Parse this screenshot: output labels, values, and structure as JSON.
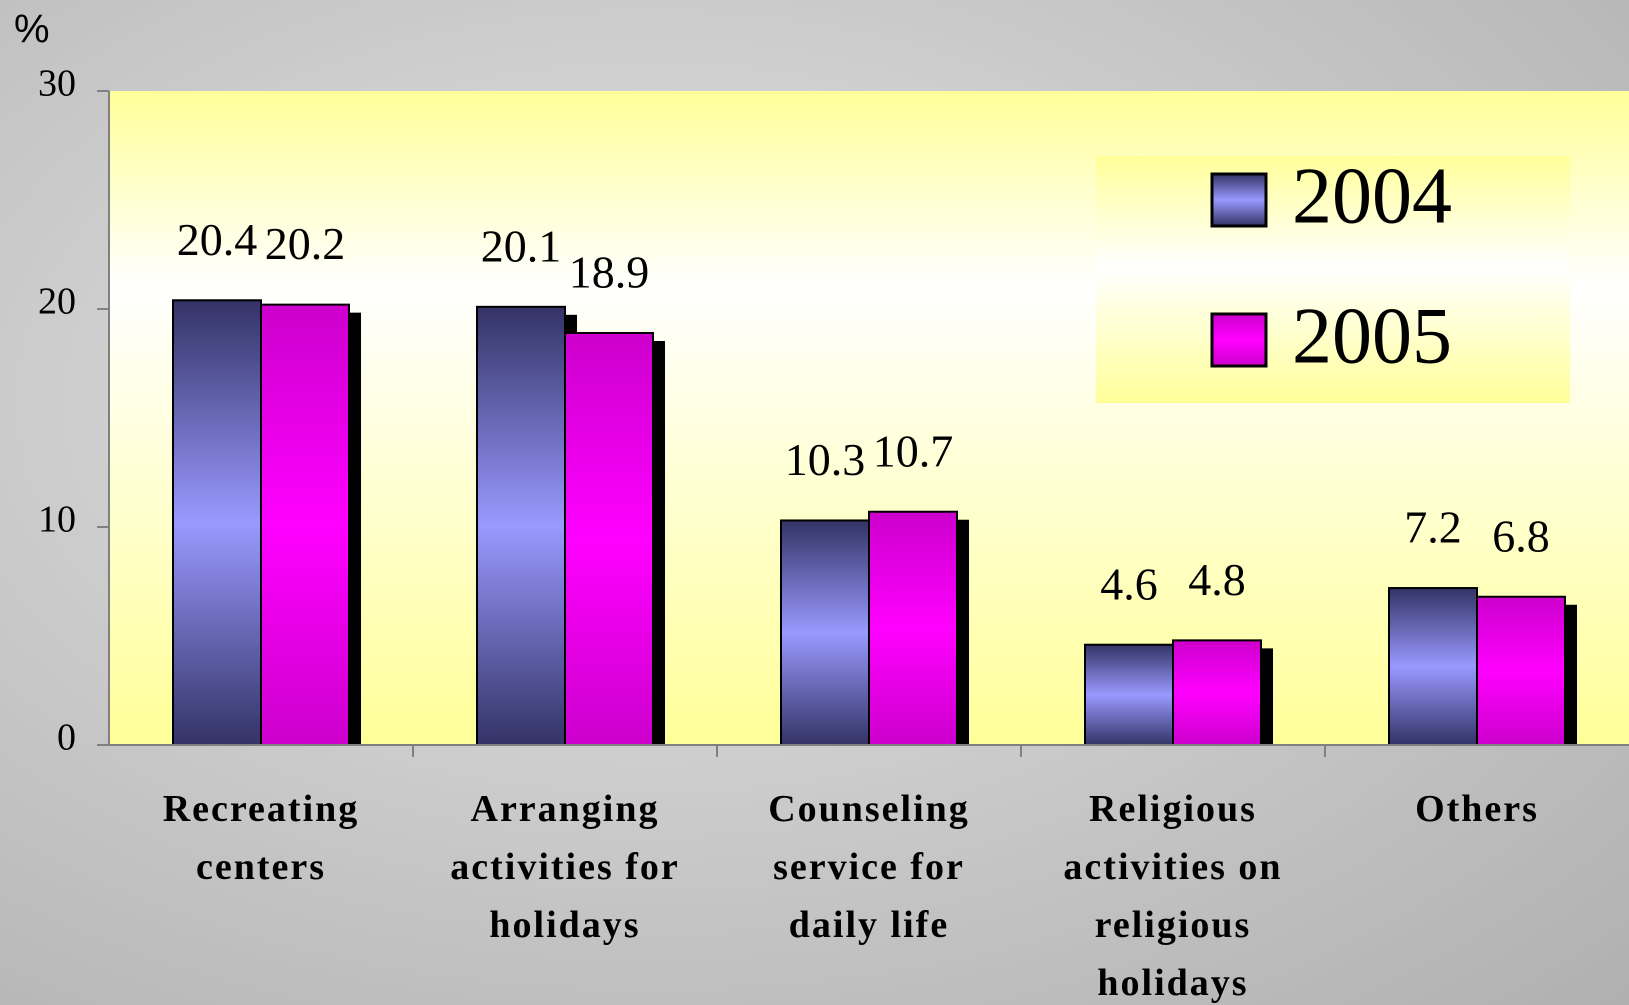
{
  "chart_data": {
    "type": "bar",
    "y_label": "%",
    "categories": [
      "Recreating centers",
      "Arranging activities for holidays",
      "Counseling service for daily life",
      "Religious activities on religious holidays",
      "Others"
    ],
    "series": [
      {
        "name": "2004",
        "color": "#9999ff",
        "values": [
          20.4,
          20.1,
          10.3,
          4.6,
          7.2
        ]
      },
      {
        "name": "2005",
        "color": "#ff00ff",
        "values": [
          20.2,
          18.9,
          10.7,
          4.8,
          6.8
        ]
      }
    ],
    "ylim": [
      0,
      30
    ],
    "yticks": [
      0,
      10,
      20,
      30
    ],
    "legend": "upper right"
  }
}
